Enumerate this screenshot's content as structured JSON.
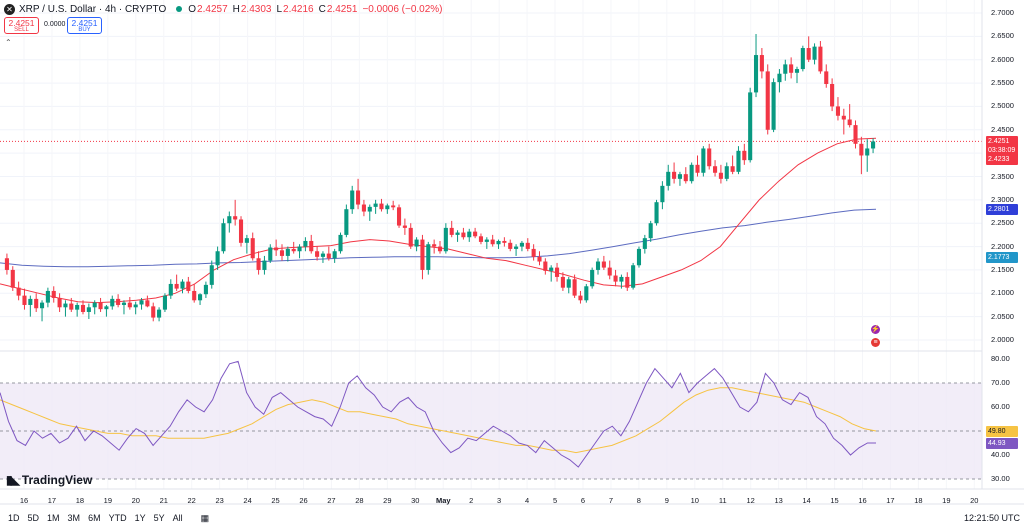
{
  "header": {
    "symbol_icon": "xrp-icon",
    "title": "XRP / U.S. Dollar · 4h · CRYPTO",
    "ohlc": [
      {
        "label": "O",
        "value": "2.4257"
      },
      {
        "label": "H",
        "value": "2.4303"
      },
      {
        "label": "L",
        "value": "2.4216"
      },
      {
        "label": "C",
        "value": "2.4251"
      }
    ],
    "change": "−0.0006 (−0.02%)",
    "sell": {
      "price": "2.4251",
      "label": "SELL"
    },
    "spread": "0.0000",
    "buy": {
      "price": "2.4251",
      "label": "BUY"
    }
  },
  "price_axis": {
    "labels": [
      "2.7000",
      "2.6500",
      "2.6000",
      "2.5500",
      "2.5000",
      "2.4500",
      "2.4000",
      "2.3500",
      "2.3000",
      "2.2500",
      "2.2000",
      "2.1500",
      "2.1000",
      "2.0500",
      "2.0000"
    ],
    "pills": [
      {
        "text": "2.4251",
        "bg": "#f23645",
        "color": "#ffffff"
      },
      {
        "text": "03:38:09",
        "bg": "#f23645",
        "color": "#ffffff"
      },
      {
        "text": "2.4233",
        "bg": "#f23645",
        "color": "#ffffff"
      },
      {
        "text": "2.2801",
        "bg": "#2f3fd8",
        "color": "#ffffff"
      },
      {
        "text": "2.1773",
        "bg": "#2196c9",
        "color": "#ffffff"
      }
    ]
  },
  "rsi_axis": {
    "labels": [
      "80.00",
      "70.00",
      "60.00",
      "50.00",
      "40.00",
      "30.00"
    ],
    "pills": [
      {
        "text": "49.80",
        "bg": "#f6c344",
        "color": "#131722"
      },
      {
        "text": "44.93",
        "bg": "#7e57c2",
        "color": "#ffffff"
      }
    ]
  },
  "time_axis": [
    "16",
    "17",
    "18",
    "19",
    "20",
    "21",
    "22",
    "23",
    "24",
    "25",
    "26",
    "27",
    "28",
    "29",
    "30",
    "May",
    "2",
    "3",
    "4",
    "5",
    "6",
    "7",
    "8",
    "9",
    "10",
    "11",
    "12",
    "13",
    "14",
    "15",
    "16",
    "17",
    "18",
    "19",
    "20"
  ],
  "toolbar": {
    "ranges": [
      "1D",
      "5D",
      "1M",
      "3M",
      "6M",
      "YTD",
      "1Y",
      "5Y",
      "All"
    ],
    "calendar_icon": "calendar-range-icon",
    "clock": "12:21:50 UTC"
  },
  "brand": "TradingView",
  "colors": {
    "up": "#089981",
    "down": "#f23645",
    "ma_fast": "#f23645",
    "ma_slow": "#5c6bc0",
    "rsi": "#7e57c2",
    "rsi_ma": "#f6c344",
    "rsi_band": "#ede7f6"
  },
  "chart_data": {
    "type": "candlestick",
    "interval": "4h",
    "price_range": [
      1.97,
      2.715
    ],
    "candles": [
      [
        2.175,
        2.185,
        2.14,
        2.15
      ],
      [
        2.15,
        2.158,
        2.105,
        2.112
      ],
      [
        2.112,
        2.125,
        2.085,
        2.095
      ],
      [
        2.095,
        2.11,
        2.065,
        2.075
      ],
      [
        2.075,
        2.095,
        2.05,
        2.088
      ],
      [
        2.088,
        2.1,
        2.06,
        2.068
      ],
      [
        2.068,
        2.085,
        2.04,
        2.08
      ],
      [
        2.08,
        2.112,
        2.07,
        2.105
      ],
      [
        2.105,
        2.115,
        2.08,
        2.09
      ],
      [
        2.09,
        2.1,
        2.06,
        2.07
      ],
      [
        2.07,
        2.085,
        2.05,
        2.078
      ],
      [
        2.078,
        2.09,
        2.06,
        2.065
      ],
      [
        2.065,
        2.08,
        2.05,
        2.075
      ],
      [
        2.075,
        2.085,
        2.055,
        2.06
      ],
      [
        2.06,
        2.078,
        2.045,
        2.07
      ],
      [
        2.07,
        2.085,
        2.055,
        2.08
      ],
      [
        2.08,
        2.09,
        2.06,
        2.066
      ],
      [
        2.066,
        2.075,
        2.05,
        2.072
      ],
      [
        2.072,
        2.095,
        2.065,
        2.088
      ],
      [
        2.088,
        2.098,
        2.07,
        2.075
      ],
      [
        2.075,
        2.085,
        2.055,
        2.08
      ],
      [
        2.08,
        2.092,
        2.065,
        2.07
      ],
      [
        2.07,
        2.082,
        2.055,
        2.076
      ],
      [
        2.076,
        2.09,
        2.065,
        2.085
      ],
      [
        2.085,
        2.095,
        2.07,
        2.072
      ],
      [
        2.072,
        2.08,
        2.04,
        2.048
      ],
      [
        2.048,
        2.07,
        2.04,
        2.065
      ],
      [
        2.065,
        2.1,
        2.06,
        2.095
      ],
      [
        2.095,
        2.13,
        2.088,
        2.12
      ],
      [
        2.12,
        2.14,
        2.105,
        2.11
      ],
      [
        2.11,
        2.13,
        2.1,
        2.125
      ],
      [
        2.125,
        2.135,
        2.1,
        2.105
      ],
      [
        2.105,
        2.12,
        2.08,
        2.085
      ],
      [
        2.085,
        2.1,
        2.075,
        2.098
      ],
      [
        2.098,
        2.125,
        2.09,
        2.118
      ],
      [
        2.118,
        2.17,
        2.11,
        2.16
      ],
      [
        2.16,
        2.2,
        2.15,
        2.19
      ],
      [
        2.19,
        2.26,
        2.185,
        2.25
      ],
      [
        2.25,
        2.275,
        2.23,
        2.265
      ],
      [
        2.265,
        2.3,
        2.245,
        2.258
      ],
      [
        2.258,
        2.265,
        2.2,
        2.208
      ],
      [
        2.208,
        2.225,
        2.185,
        2.218
      ],
      [
        2.218,
        2.23,
        2.17,
        2.175
      ],
      [
        2.175,
        2.19,
        2.14,
        2.15
      ],
      [
        2.15,
        2.18,
        2.14,
        2.17
      ],
      [
        2.17,
        2.205,
        2.165,
        2.198
      ],
      [
        2.198,
        2.215,
        2.18,
        2.192
      ],
      [
        2.192,
        2.205,
        2.17,
        2.18
      ],
      [
        2.18,
        2.2,
        2.168,
        2.195
      ],
      [
        2.195,
        2.21,
        2.185,
        2.19
      ],
      [
        2.19,
        2.205,
        2.175,
        2.2
      ],
      [
        2.2,
        2.22,
        2.19,
        2.212
      ],
      [
        2.212,
        2.225,
        2.185,
        2.19
      ],
      [
        2.19,
        2.2,
        2.17,
        2.178
      ],
      [
        2.178,
        2.19,
        2.165,
        2.185
      ],
      [
        2.185,
        2.2,
        2.17,
        2.175
      ],
      [
        2.175,
        2.195,
        2.165,
        2.19
      ],
      [
        2.19,
        2.23,
        2.185,
        2.225
      ],
      [
        2.225,
        2.29,
        2.22,
        2.28
      ],
      [
        2.28,
        2.33,
        2.27,
        2.32
      ],
      [
        2.32,
        2.345,
        2.28,
        2.29
      ],
      [
        2.29,
        2.3,
        2.265,
        2.275
      ],
      [
        2.275,
        2.29,
        2.255,
        2.285
      ],
      [
        2.285,
        2.3,
        2.27,
        2.292
      ],
      [
        2.292,
        2.302,
        2.275,
        2.28
      ],
      [
        2.28,
        2.292,
        2.27,
        2.288
      ],
      [
        2.288,
        2.298,
        2.278,
        2.284
      ],
      [
        2.284,
        2.29,
        2.24,
        2.245
      ],
      [
        2.245,
        2.26,
        2.225,
        2.24
      ],
      [
        2.24,
        2.25,
        2.195,
        2.2
      ],
      [
        2.2,
        2.22,
        2.19,
        2.215
      ],
      [
        2.215,
        2.225,
        2.13,
        2.15
      ],
      [
        2.15,
        2.21,
        2.14,
        2.205
      ],
      [
        2.205,
        2.215,
        2.185,
        2.2
      ],
      [
        2.2,
        2.212,
        2.185,
        2.19
      ],
      [
        2.19,
        2.25,
        2.185,
        2.24
      ],
      [
        2.24,
        2.255,
        2.22,
        2.225
      ],
      [
        2.225,
        2.235,
        2.21,
        2.23
      ],
      [
        2.23,
        2.24,
        2.215,
        2.22
      ],
      [
        2.22,
        2.238,
        2.21,
        2.232
      ],
      [
        2.232,
        2.24,
        2.218,
        2.222
      ],
      [
        2.222,
        2.228,
        2.205,
        2.21
      ],
      [
        2.21,
        2.22,
        2.195,
        2.215
      ],
      [
        2.215,
        2.225,
        2.2,
        2.205
      ],
      [
        2.205,
        2.215,
        2.195,
        2.212
      ],
      [
        2.212,
        2.22,
        2.2,
        2.208
      ],
      [
        2.208,
        2.215,
        2.19,
        2.195
      ],
      [
        2.195,
        2.205,
        2.18,
        2.2
      ],
      [
        2.2,
        2.212,
        2.19,
        2.208
      ],
      [
        2.208,
        2.218,
        2.19,
        2.195
      ],
      [
        2.195,
        2.205,
        2.17,
        2.178
      ],
      [
        2.178,
        2.19,
        2.16,
        2.168
      ],
      [
        2.168,
        2.175,
        2.14,
        2.148
      ],
      [
        2.148,
        2.16,
        2.125,
        2.155
      ],
      [
        2.155,
        2.165,
        2.125,
        2.135
      ],
      [
        2.135,
        2.145,
        2.105,
        2.112
      ],
      [
        2.112,
        2.135,
        2.1,
        2.13
      ],
      [
        2.13,
        2.14,
        2.09,
        2.095
      ],
      [
        2.095,
        2.105,
        2.078,
        2.085
      ],
      [
        2.085,
        2.12,
        2.08,
        2.115
      ],
      [
        2.115,
        2.155,
        2.11,
        2.15
      ],
      [
        2.15,
        2.175,
        2.14,
        2.168
      ],
      [
        2.168,
        2.18,
        2.15,
        2.155
      ],
      [
        2.155,
        2.17,
        2.13,
        2.138
      ],
      [
        2.138,
        2.15,
        2.115,
        2.125
      ],
      [
        2.125,
        2.14,
        2.11,
        2.135
      ],
      [
        2.135,
        2.145,
        2.105,
        2.112
      ],
      [
        2.112,
        2.165,
        2.108,
        2.16
      ],
      [
        2.16,
        2.2,
        2.155,
        2.195
      ],
      [
        2.195,
        2.225,
        2.185,
        2.218
      ],
      [
        2.218,
        2.255,
        2.21,
        2.25
      ],
      [
        2.25,
        2.3,
        2.245,
        2.295
      ],
      [
        2.295,
        2.34,
        2.28,
        2.33
      ],
      [
        2.33,
        2.375,
        2.32,
        2.36
      ],
      [
        2.36,
        2.38,
        2.335,
        2.345
      ],
      [
        2.345,
        2.36,
        2.33,
        2.355
      ],
      [
        2.355,
        2.37,
        2.335,
        2.34
      ],
      [
        2.34,
        2.38,
        2.335,
        2.375
      ],
      [
        2.375,
        2.395,
        2.35,
        2.358
      ],
      [
        2.358,
        2.415,
        2.35,
        2.41
      ],
      [
        2.41,
        2.42,
        2.365,
        2.372
      ],
      [
        2.372,
        2.385,
        2.35,
        2.358
      ],
      [
        2.358,
        2.375,
        2.335,
        2.345
      ],
      [
        2.345,
        2.38,
        2.34,
        2.372
      ],
      [
        2.372,
        2.395,
        2.355,
        2.36
      ],
      [
        2.36,
        2.415,
        2.355,
        2.405
      ],
      [
        2.405,
        2.42,
        2.375,
        2.385
      ],
      [
        2.385,
        2.54,
        2.38,
        2.53
      ],
      [
        2.53,
        2.655,
        2.52,
        2.61
      ],
      [
        2.61,
        2.625,
        2.56,
        2.575
      ],
      [
        2.575,
        2.59,
        2.44,
        2.45
      ],
      [
        2.45,
        2.56,
        2.445,
        2.552
      ],
      [
        2.552,
        2.58,
        2.53,
        2.57
      ],
      [
        2.57,
        2.6,
        2.555,
        2.59
      ],
      [
        2.59,
        2.605,
        2.56,
        2.572
      ],
      [
        2.572,
        2.585,
        2.55,
        2.58
      ],
      [
        2.58,
        2.63,
        2.575,
        2.625
      ],
      [
        2.625,
        2.65,
        2.595,
        2.6
      ],
      [
        2.6,
        2.635,
        2.59,
        2.628
      ],
      [
        2.628,
        2.64,
        2.57,
        2.575
      ],
      [
        2.575,
        2.59,
        2.54,
        2.548
      ],
      [
        2.548,
        2.56,
        2.49,
        2.5
      ],
      [
        2.5,
        2.52,
        2.47,
        2.48
      ],
      [
        2.48,
        2.495,
        2.44,
        2.472
      ],
      [
        2.472,
        2.505,
        2.455,
        2.46
      ],
      [
        2.46,
        2.47,
        2.41,
        2.42
      ],
      [
        2.42,
        2.435,
        2.355,
        2.395
      ],
      [
        2.395,
        2.43,
        2.36,
        2.41
      ],
      [
        2.41,
        2.432,
        2.4,
        2.425
      ]
    ],
    "ma_fast": [
      2.12,
      2.11,
      2.1,
      2.09,
      2.082,
      2.08,
      2.082,
      2.085,
      2.09,
      2.1,
      2.12,
      2.15,
      2.172,
      2.185,
      2.195,
      2.198,
      2.2,
      2.202,
      2.21,
      2.215,
      2.212,
      2.205,
      2.2,
      2.195,
      2.185,
      2.175,
      2.17,
      2.16,
      2.15,
      2.14,
      2.128,
      2.118,
      2.115,
      2.12,
      2.135,
      2.15,
      2.17,
      2.2,
      2.25,
      2.3,
      2.34,
      2.375,
      2.4,
      2.42,
      2.43,
      2.432
    ],
    "ma_slow": [
      2.165,
      2.16,
      2.158,
      2.157,
      2.157,
      2.158,
      2.159,
      2.16,
      2.162,
      2.163,
      2.165,
      2.166,
      2.168,
      2.17,
      2.172,
      2.174,
      2.176,
      2.177,
      2.178,
      2.178,
      2.178,
      2.177,
      2.176,
      2.176,
      2.177,
      2.18,
      2.185,
      2.192,
      2.2,
      2.208,
      2.216,
      2.225,
      2.233,
      2.24,
      2.245,
      2.252,
      2.258,
      2.265,
      2.272,
      2.278,
      2.28
    ],
    "rsi_range": [
      27,
      83
    ],
    "rsi": [
      66,
      54,
      46,
      44,
      50,
      47,
      49,
      45,
      47,
      52,
      46,
      50,
      48,
      45,
      42,
      47,
      51,
      49,
      44,
      48,
      52,
      58,
      63,
      60,
      58,
      63,
      72,
      78,
      79,
      66,
      60,
      57,
      64,
      66,
      63,
      60,
      58,
      56,
      55,
      52,
      60,
      70,
      73,
      68,
      65,
      60,
      58,
      62,
      64,
      60,
      58,
      50,
      45,
      41,
      43,
      47,
      46,
      49,
      52,
      50,
      48,
      45,
      44,
      41,
      46,
      43,
      40,
      38,
      35,
      40,
      45,
      50,
      52,
      48,
      54,
      62,
      70,
      76,
      72,
      68,
      74,
      66,
      70,
      73,
      76,
      72,
      66,
      60,
      58,
      62,
      74,
      70,
      63,
      61,
      66,
      64,
      56,
      53,
      47,
      44,
      40,
      43,
      45,
      45
    ],
    "rsi_ma": [
      63,
      61,
      59,
      57,
      55,
      53,
      52,
      51,
      50,
      49,
      49,
      48,
      48,
      48,
      47,
      47,
      47,
      47,
      48,
      49,
      51,
      53,
      56,
      59,
      61,
      62,
      63,
      62,
      60,
      58,
      58,
      57,
      56,
      55,
      53,
      52,
      51,
      50,
      49,
      48,
      47,
      46,
      45,
      44,
      44,
      43,
      42,
      42,
      41,
      42,
      43,
      44,
      46,
      48,
      51,
      54,
      58,
      62,
      65,
      67,
      68,
      68,
      67,
      66,
      65,
      64,
      63,
      62,
      60,
      58,
      56,
      53,
      51,
      50
    ],
    "rsi_levels": [
      70,
      50,
      30
    ]
  }
}
